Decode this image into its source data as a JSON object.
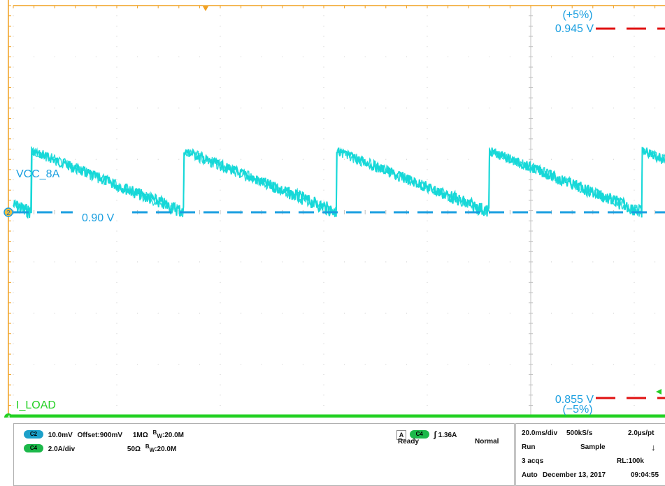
{
  "chart_data": {
    "type": "line",
    "x_range_ms": [
      0,
      200
    ],
    "x_unit": "ms",
    "y_unit": "V",
    "grid": {
      "x_divisions": 10,
      "y_divisions": 8,
      "visible": true
    },
    "channels": [
      {
        "id": "2",
        "name": "VCC_8A",
        "color": "#16d8d8",
        "label_color": "#1a9fe0",
        "baseline_v": 0.9
      },
      {
        "id": "4",
        "name": "I_LOAD",
        "color": "#22d022",
        "label_color": "#22d022"
      }
    ],
    "ripple": {
      "period_ms": 29.5,
      "first_jump_ms": 3.5,
      "high_v": 0.912,
      "low_v": 0.9
    },
    "reference_lines": [
      {
        "value_v": 0.945,
        "label": "0.945 V",
        "note": "(+5%)",
        "color": "#e01010"
      },
      {
        "value_v": 0.9,
        "label": "0.90 V",
        "note": "",
        "color": "#1a9fe0"
      },
      {
        "value_v": 0.855,
        "label": "0.855 V",
        "note": "(−5%)",
        "color": "#e01010"
      }
    ],
    "volts_per_div": 0.01,
    "center_v": 0.9
  },
  "status": {
    "ch2": {
      "badge": "C2",
      "scale": "10.0mV",
      "offset": "Offset:900mV",
      "impedance": "1MΩ",
      "bw_prefix": "B",
      "bw_sub": "W",
      "bw_value": ":20.0M"
    },
    "ch4": {
      "badge": "C4",
      "scale": "2.0A/div",
      "impedance": "50Ω",
      "bw_prefix": "B",
      "bw_sub": "W",
      "bw_value": ":20.0M"
    },
    "trigger": {
      "box": "A",
      "badge": "C4",
      "slope": "∫",
      "level": "1.36A",
      "state": "Ready",
      "mode": "Normal"
    },
    "acq": {
      "timebase": "20.0ms/div",
      "rate": "500kS/s",
      "resolution": "2.0µs/pt",
      "run": "Run",
      "sample": "Sample",
      "acqs": "3 acqs",
      "rl": "RL:100k",
      "auto": "Auto",
      "date": "December 13, 2017",
      "time": "09:04:55"
    }
  }
}
